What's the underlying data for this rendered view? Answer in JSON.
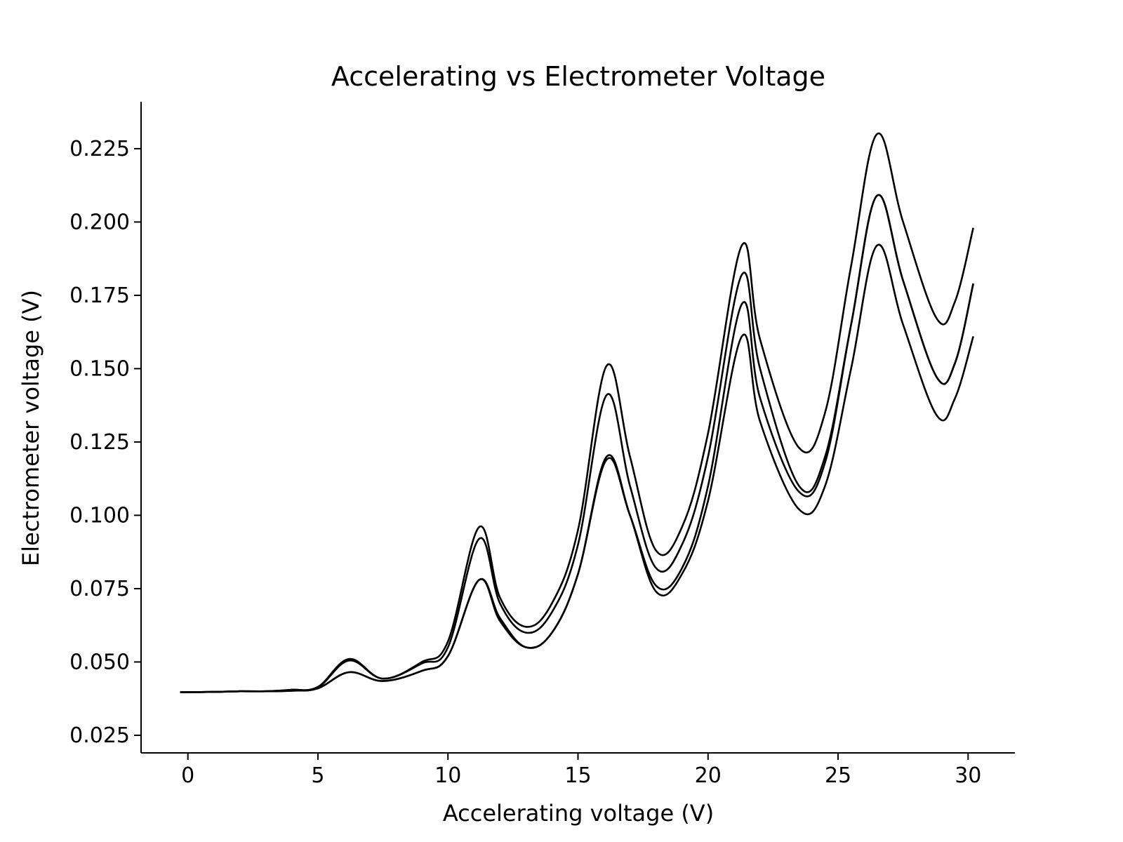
{
  "chart_data": {
    "type": "line",
    "title": "Accelerating vs Electrometer Voltage",
    "xlabel": "Accelerating voltage (V)",
    "ylabel": "Electrometer voltage (V)",
    "xlim": [
      -1.8,
      31.8
    ],
    "ylim": [
      0.019,
      0.241
    ],
    "xticks": [
      0,
      5,
      10,
      15,
      20,
      25,
      30
    ],
    "xtick_labels": [
      "0",
      "5",
      "10",
      "15",
      "20",
      "25",
      "30"
    ],
    "yticks": [
      0.025,
      0.05,
      0.075,
      0.1,
      0.125,
      0.15,
      0.175,
      0.2,
      0.225
    ],
    "ytick_labels": [
      "0.025",
      "0.050",
      "0.075",
      "0.100",
      "0.125",
      "0.150",
      "0.175",
      "0.200",
      "0.225"
    ],
    "grid": false,
    "line_color": "#000000",
    "series": [
      {
        "x": [
          -0.3,
          1,
          2,
          3,
          4,
          5,
          6.2,
          7.5,
          9,
          10,
          11.2,
          12,
          13,
          14,
          15,
          16.1,
          17,
          18,
          19,
          20,
          21.3,
          22,
          23.5,
          24.5,
          25.5,
          26.5,
          27.5,
          28.8,
          29.5,
          30.2
        ],
        "y": [
          0.0397,
          0.0398,
          0.04,
          0.04,
          0.0405,
          0.0415,
          0.051,
          0.0443,
          0.05,
          0.057,
          0.096,
          0.072,
          0.062,
          0.07,
          0.095,
          0.151,
          0.12,
          0.088,
          0.096,
          0.128,
          0.192,
          0.16,
          0.123,
          0.135,
          0.185,
          0.23,
          0.2,
          0.167,
          0.173,
          0.198
        ]
      },
      {
        "x": [
          -0.3,
          1,
          2,
          3,
          4,
          5,
          6.2,
          7.5,
          9,
          10,
          11.2,
          12,
          13,
          14,
          15,
          16.1,
          17,
          18,
          19,
          20,
          21.3,
          22,
          23.5,
          24.5,
          25.5,
          26.5,
          27.5,
          28.8,
          29.5,
          30.2
        ],
        "y": [
          0.0397,
          0.0398,
          0.04,
          0.04,
          0.0405,
          0.0413,
          0.0505,
          0.0443,
          0.0495,
          0.055,
          0.092,
          0.07,
          0.06,
          0.067,
          0.09,
          0.141,
          0.11,
          0.082,
          0.09,
          0.12,
          0.182,
          0.15,
          0.11,
          0.12,
          0.165,
          0.209,
          0.18,
          0.147,
          0.152,
          0.179
        ]
      },
      {
        "x": [
          -0.3,
          1,
          2,
          3,
          4,
          5,
          6.2,
          7.5,
          9,
          10,
          11.2,
          12,
          13,
          14,
          15,
          16.1,
          17,
          18,
          19,
          20,
          21.3,
          22,
          23.5,
          24.5,
          25.5,
          26.5,
          27.5,
          28.8,
          29.5,
          30.2
        ],
        "y": [
          0.0397,
          0.0398,
          0.04,
          0.04,
          0.0402,
          0.041,
          0.0465,
          0.0435,
          0.047,
          0.052,
          0.078,
          0.065,
          0.055,
          0.06,
          0.08,
          0.119,
          0.1,
          0.076,
          0.082,
          0.11,
          0.172,
          0.14,
          0.108,
          0.118,
          0.165,
          0.209,
          0.18,
          0.147,
          0.152,
          0.179
        ]
      },
      {
        "x": [
          -0.3,
          1,
          2,
          3,
          4,
          5,
          6.2,
          7.5,
          9,
          10,
          11.2,
          12,
          13,
          14,
          15,
          16.1,
          17,
          18,
          19,
          20,
          21.3,
          22,
          23.5,
          24.5,
          25.5,
          26.5,
          27.5,
          28.8,
          29.5,
          30.2
        ],
        "y": [
          0.0397,
          0.0398,
          0.04,
          0.04,
          0.0402,
          0.041,
          0.0465,
          0.0435,
          0.047,
          0.052,
          0.078,
          0.064,
          0.055,
          0.06,
          0.08,
          0.12,
          0.1,
          0.074,
          0.08,
          0.105,
          0.161,
          0.132,
          0.102,
          0.11,
          0.15,
          0.192,
          0.165,
          0.134,
          0.14,
          0.161
        ]
      }
    ]
  }
}
